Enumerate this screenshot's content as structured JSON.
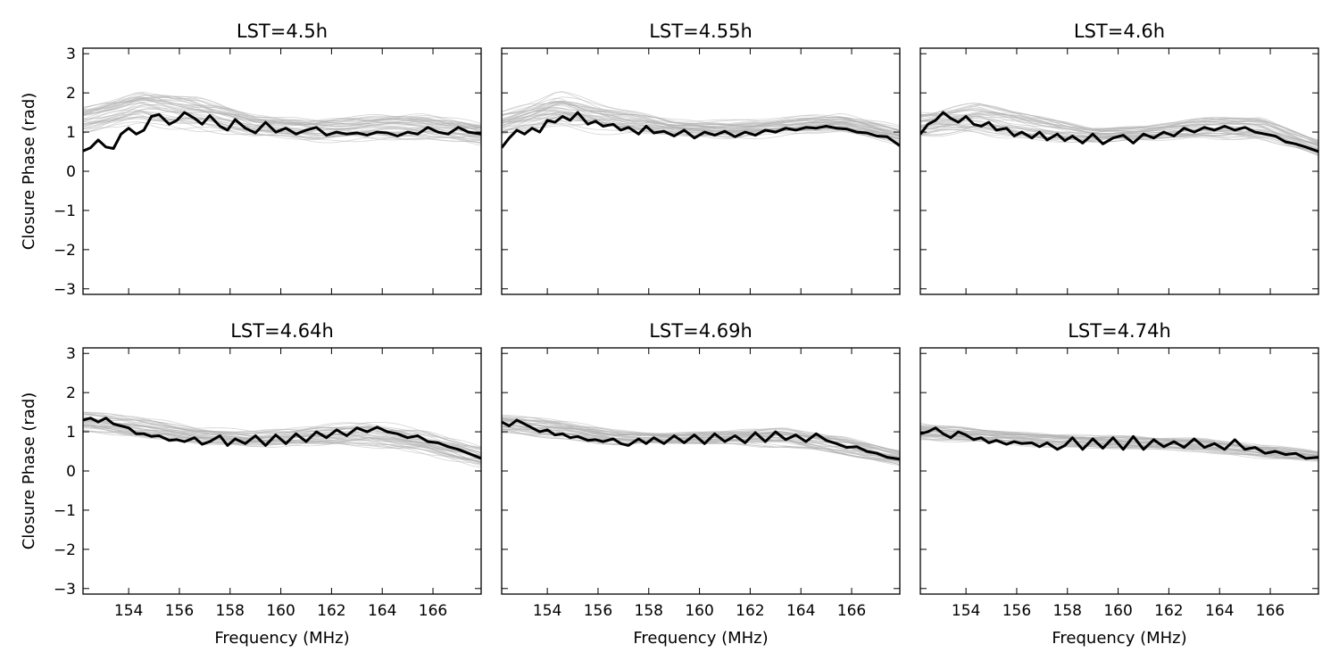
{
  "chart_data": [
    {
      "type": "line",
      "title": "LST=4.5h",
      "xlabel": "",
      "ylabel": "Closure Phase (rad)",
      "xlim": [
        152.2,
        167.9
      ],
      "ylim": [
        -3.1416,
        3.1416
      ],
      "xticks": [
        154,
        156,
        158,
        160,
        162,
        164,
        166
      ],
      "yticks": [
        -3,
        -2,
        -1,
        0,
        1,
        2,
        3
      ],
      "x_tick_labels_shown": false,
      "background_series": {
        "count": 40,
        "color": "#b0b0b0",
        "band_low": [
          0.95,
          1.3,
          1.1,
          0.9,
          0.8,
          0.85,
          0.8,
          0.7
        ],
        "band_high": [
          1.6,
          2.0,
          1.8,
          1.4,
          1.3,
          1.35,
          1.4,
          1.2
        ]
      },
      "series": [
        {
          "x": [
            152.2,
            152.5,
            152.8,
            153.1,
            153.4,
            153.7,
            154.0,
            154.3,
            154.6,
            154.9,
            155.2,
            155.6,
            155.9,
            156.2,
            156.6,
            156.9,
            157.2,
            157.6,
            157.9,
            158.2,
            158.6,
            159.0,
            159.4,
            159.8,
            160.2,
            160.6,
            161.0,
            161.4,
            161.8,
            162.2,
            162.6,
            163.0,
            163.4,
            163.8,
            164.2,
            164.6,
            165.0,
            165.4,
            165.8,
            166.2,
            166.6,
            167.0,
            167.4,
            167.9
          ],
          "y": [
            0.52,
            0.6,
            0.8,
            0.62,
            0.58,
            0.95,
            1.1,
            0.95,
            1.05,
            1.4,
            1.45,
            1.2,
            1.3,
            1.5,
            1.35,
            1.2,
            1.42,
            1.15,
            1.05,
            1.32,
            1.1,
            0.98,
            1.25,
            1.0,
            1.1,
            0.95,
            1.05,
            1.12,
            0.92,
            1.0,
            0.95,
            0.98,
            0.92,
            1.0,
            0.98,
            0.9,
            1.0,
            0.95,
            1.12,
            1.0,
            0.95,
            1.12,
            1.0,
            0.95
          ],
          "color": "#000000"
        }
      ]
    },
    {
      "type": "line",
      "title": "LST=4.55h",
      "xlabel": "",
      "ylabel": "",
      "xlim": [
        152.2,
        167.9
      ],
      "ylim": [
        -3.1416,
        3.1416
      ],
      "xticks": [
        154,
        156,
        158,
        160,
        162,
        164,
        166
      ],
      "yticks": [
        -3,
        -2,
        -1,
        0,
        1,
        2,
        3
      ],
      "x_tick_labels_shown": false,
      "background_series": {
        "count": 40,
        "color": "#b0b0b0",
        "band_low": [
          0.9,
          1.2,
          1.0,
          0.9,
          0.85,
          0.95,
          1.0,
          0.7
        ],
        "band_high": [
          1.5,
          1.95,
          1.6,
          1.3,
          1.25,
          1.35,
          1.45,
          1.1
        ]
      },
      "series": [
        {
          "x": [
            152.2,
            152.5,
            152.8,
            153.1,
            153.4,
            153.7,
            154.0,
            154.3,
            154.6,
            154.9,
            155.2,
            155.6,
            155.9,
            156.2,
            156.6,
            156.9,
            157.2,
            157.6,
            157.9,
            158.2,
            158.6,
            159.0,
            159.4,
            159.8,
            160.2,
            160.6,
            161.0,
            161.4,
            161.8,
            162.2,
            162.6,
            163.0,
            163.4,
            163.8,
            164.2,
            164.6,
            165.0,
            165.4,
            165.8,
            166.2,
            166.6,
            167.0,
            167.4,
            167.9
          ],
          "y": [
            0.6,
            0.85,
            1.05,
            0.95,
            1.1,
            1.0,
            1.3,
            1.25,
            1.4,
            1.3,
            1.5,
            1.2,
            1.28,
            1.15,
            1.2,
            1.05,
            1.12,
            0.95,
            1.15,
            0.98,
            1.02,
            0.9,
            1.05,
            0.85,
            1.0,
            0.92,
            1.02,
            0.88,
            1.0,
            0.92,
            1.05,
            1.0,
            1.1,
            1.05,
            1.12,
            1.1,
            1.15,
            1.1,
            1.08,
            1.0,
            0.98,
            0.9,
            0.88,
            0.65
          ],
          "color": "#000000"
        }
      ]
    },
    {
      "type": "line",
      "title": "LST=4.6h",
      "xlabel": "",
      "ylabel": "",
      "xlim": [
        152.2,
        167.9
      ],
      "ylim": [
        -3.1416,
        3.1416
      ],
      "xticks": [
        154,
        156,
        158,
        160,
        162,
        164,
        166
      ],
      "yticks": [
        -3,
        -2,
        -1,
        0,
        1,
        2,
        3
      ],
      "x_tick_labels_shown": false,
      "background_series": {
        "count": 40,
        "color": "#b0b0b0",
        "band_low": [
          0.9,
          1.0,
          0.85,
          0.75,
          0.8,
          0.9,
          0.85,
          0.4
        ],
        "band_high": [
          1.5,
          1.7,
          1.35,
          1.1,
          1.15,
          1.3,
          1.35,
          0.8
        ]
      },
      "series": [
        {
          "x": [
            152.2,
            152.5,
            152.8,
            153.1,
            153.4,
            153.7,
            154.0,
            154.3,
            154.6,
            154.9,
            155.2,
            155.6,
            155.9,
            156.2,
            156.6,
            156.9,
            157.2,
            157.6,
            157.9,
            158.2,
            158.6,
            159.0,
            159.4,
            159.8,
            160.2,
            160.6,
            161.0,
            161.4,
            161.8,
            162.2,
            162.6,
            163.0,
            163.4,
            163.8,
            164.2,
            164.6,
            165.0,
            165.4,
            165.8,
            166.2,
            166.6,
            167.0,
            167.4,
            167.9
          ],
          "y": [
            0.95,
            1.2,
            1.3,
            1.5,
            1.35,
            1.25,
            1.4,
            1.2,
            1.15,
            1.25,
            1.05,
            1.1,
            0.9,
            1.0,
            0.85,
            1.0,
            0.8,
            0.95,
            0.78,
            0.9,
            0.72,
            0.95,
            0.7,
            0.85,
            0.92,
            0.72,
            0.95,
            0.85,
            1.0,
            0.9,
            1.1,
            1.0,
            1.12,
            1.05,
            1.15,
            1.05,
            1.12,
            1.0,
            0.95,
            0.9,
            0.75,
            0.7,
            0.62,
            0.5
          ],
          "color": "#000000"
        }
      ]
    },
    {
      "type": "line",
      "title": "LST=4.64h",
      "xlabel": "Frequency (MHz)",
      "ylabel": "Closure Phase (rad)",
      "xlim": [
        152.2,
        167.9
      ],
      "ylim": [
        -3.1416,
        3.1416
      ],
      "xticks": [
        154,
        156,
        158,
        160,
        162,
        164,
        166
      ],
      "yticks": [
        -3,
        -2,
        -1,
        0,
        1,
        2,
        3
      ],
      "x_tick_labels_shown": true,
      "background_series": {
        "count": 40,
        "color": "#b0b0b0",
        "band_low": [
          1.05,
          0.9,
          0.75,
          0.65,
          0.7,
          0.7,
          0.5,
          0.15
        ],
        "band_high": [
          1.5,
          1.35,
          1.1,
          1.0,
          1.1,
          1.25,
          1.0,
          0.6
        ]
      },
      "series": [
        {
          "x": [
            152.2,
            152.5,
            152.8,
            153.1,
            153.4,
            153.7,
            154.0,
            154.3,
            154.6,
            154.9,
            155.2,
            155.6,
            155.9,
            156.2,
            156.6,
            156.9,
            157.2,
            157.6,
            157.9,
            158.2,
            158.6,
            159.0,
            159.4,
            159.8,
            160.2,
            160.6,
            161.0,
            161.4,
            161.8,
            162.2,
            162.6,
            163.0,
            163.4,
            163.8,
            164.2,
            164.6,
            165.0,
            165.4,
            165.8,
            166.2,
            166.6,
            167.0,
            167.4,
            167.9
          ],
          "y": [
            1.3,
            1.35,
            1.25,
            1.35,
            1.2,
            1.15,
            1.1,
            0.95,
            0.95,
            0.88,
            0.9,
            0.78,
            0.8,
            0.75,
            0.85,
            0.68,
            0.75,
            0.9,
            0.65,
            0.82,
            0.7,
            0.9,
            0.65,
            0.92,
            0.7,
            0.95,
            0.75,
            1.0,
            0.85,
            1.05,
            0.9,
            1.1,
            1.0,
            1.12,
            1.0,
            0.95,
            0.85,
            0.9,
            0.75,
            0.72,
            0.62,
            0.55,
            0.45,
            0.32
          ],
          "color": "#000000"
        }
      ]
    },
    {
      "type": "line",
      "title": "LST=4.69h",
      "xlabel": "Frequency (MHz)",
      "ylabel": "",
      "xlim": [
        152.2,
        167.9
      ],
      "ylim": [
        -3.1416,
        3.1416
      ],
      "xticks": [
        154,
        156,
        158,
        160,
        162,
        164,
        166
      ],
      "yticks": [
        -3,
        -2,
        -1,
        0,
        1,
        2,
        3
      ],
      "x_tick_labels_shown": true,
      "background_series": {
        "count": 40,
        "color": "#b0b0b0",
        "band_low": [
          1.0,
          0.85,
          0.7,
          0.7,
          0.7,
          0.65,
          0.4,
          0.15
        ],
        "band_high": [
          1.4,
          1.25,
          1.0,
          0.95,
          1.0,
          1.05,
          0.85,
          0.5
        ]
      },
      "series": [
        {
          "x": [
            152.2,
            152.5,
            152.8,
            153.1,
            153.4,
            153.7,
            154.0,
            154.3,
            154.6,
            154.9,
            155.2,
            155.6,
            155.9,
            156.2,
            156.6,
            156.9,
            157.2,
            157.6,
            157.9,
            158.2,
            158.6,
            159.0,
            159.4,
            159.8,
            160.2,
            160.6,
            161.0,
            161.4,
            161.8,
            162.2,
            162.6,
            163.0,
            163.4,
            163.8,
            164.2,
            164.6,
            165.0,
            165.4,
            165.8,
            166.2,
            166.6,
            167.0,
            167.4,
            167.9
          ],
          "y": [
            1.25,
            1.15,
            1.3,
            1.2,
            1.1,
            1.0,
            1.05,
            0.92,
            0.95,
            0.85,
            0.88,
            0.78,
            0.8,
            0.75,
            0.82,
            0.7,
            0.65,
            0.82,
            0.7,
            0.85,
            0.7,
            0.9,
            0.72,
            0.92,
            0.7,
            0.95,
            0.75,
            0.9,
            0.72,
            0.98,
            0.75,
            1.0,
            0.8,
            0.92,
            0.75,
            0.95,
            0.78,
            0.7,
            0.6,
            0.62,
            0.5,
            0.45,
            0.35,
            0.3
          ],
          "color": "#000000"
        }
      ]
    },
    {
      "type": "line",
      "title": "LST=4.74h",
      "xlabel": "Frequency (MHz)",
      "ylabel": "",
      "xlim": [
        152.2,
        167.9
      ],
      "ylim": [
        -3.1416,
        3.1416
      ],
      "xticks": [
        154,
        156,
        158,
        160,
        162,
        164,
        166
      ],
      "yticks": [
        -3,
        -2,
        -1,
        0,
        1,
        2,
        3
      ],
      "x_tick_labels_shown": true,
      "background_series": {
        "count": 40,
        "color": "#b0b0b0",
        "band_low": [
          0.8,
          0.75,
          0.65,
          0.6,
          0.55,
          0.5,
          0.35,
          0.25
        ],
        "band_high": [
          1.2,
          1.05,
          0.95,
          0.9,
          0.85,
          0.8,
          0.65,
          0.5
        ]
      },
      "series": [
        {
          "x": [
            152.2,
            152.5,
            152.8,
            153.1,
            153.4,
            153.7,
            154.0,
            154.3,
            154.6,
            154.9,
            155.2,
            155.6,
            155.9,
            156.2,
            156.6,
            156.9,
            157.2,
            157.6,
            157.9,
            158.2,
            158.6,
            159.0,
            159.4,
            159.8,
            160.2,
            160.6,
            161.0,
            161.4,
            161.8,
            162.2,
            162.6,
            163.0,
            163.4,
            163.8,
            164.2,
            164.6,
            165.0,
            165.4,
            165.8,
            166.2,
            166.6,
            167.0,
            167.4,
            167.9
          ],
          "y": [
            0.95,
            1.0,
            1.1,
            0.95,
            0.85,
            1.0,
            0.92,
            0.8,
            0.85,
            0.72,
            0.78,
            0.68,
            0.75,
            0.7,
            0.72,
            0.62,
            0.72,
            0.55,
            0.65,
            0.85,
            0.55,
            0.82,
            0.58,
            0.85,
            0.55,
            0.88,
            0.55,
            0.8,
            0.62,
            0.75,
            0.6,
            0.82,
            0.6,
            0.7,
            0.55,
            0.8,
            0.55,
            0.6,
            0.45,
            0.5,
            0.42,
            0.45,
            0.32,
            0.35
          ],
          "color": "#000000"
        }
      ]
    }
  ]
}
